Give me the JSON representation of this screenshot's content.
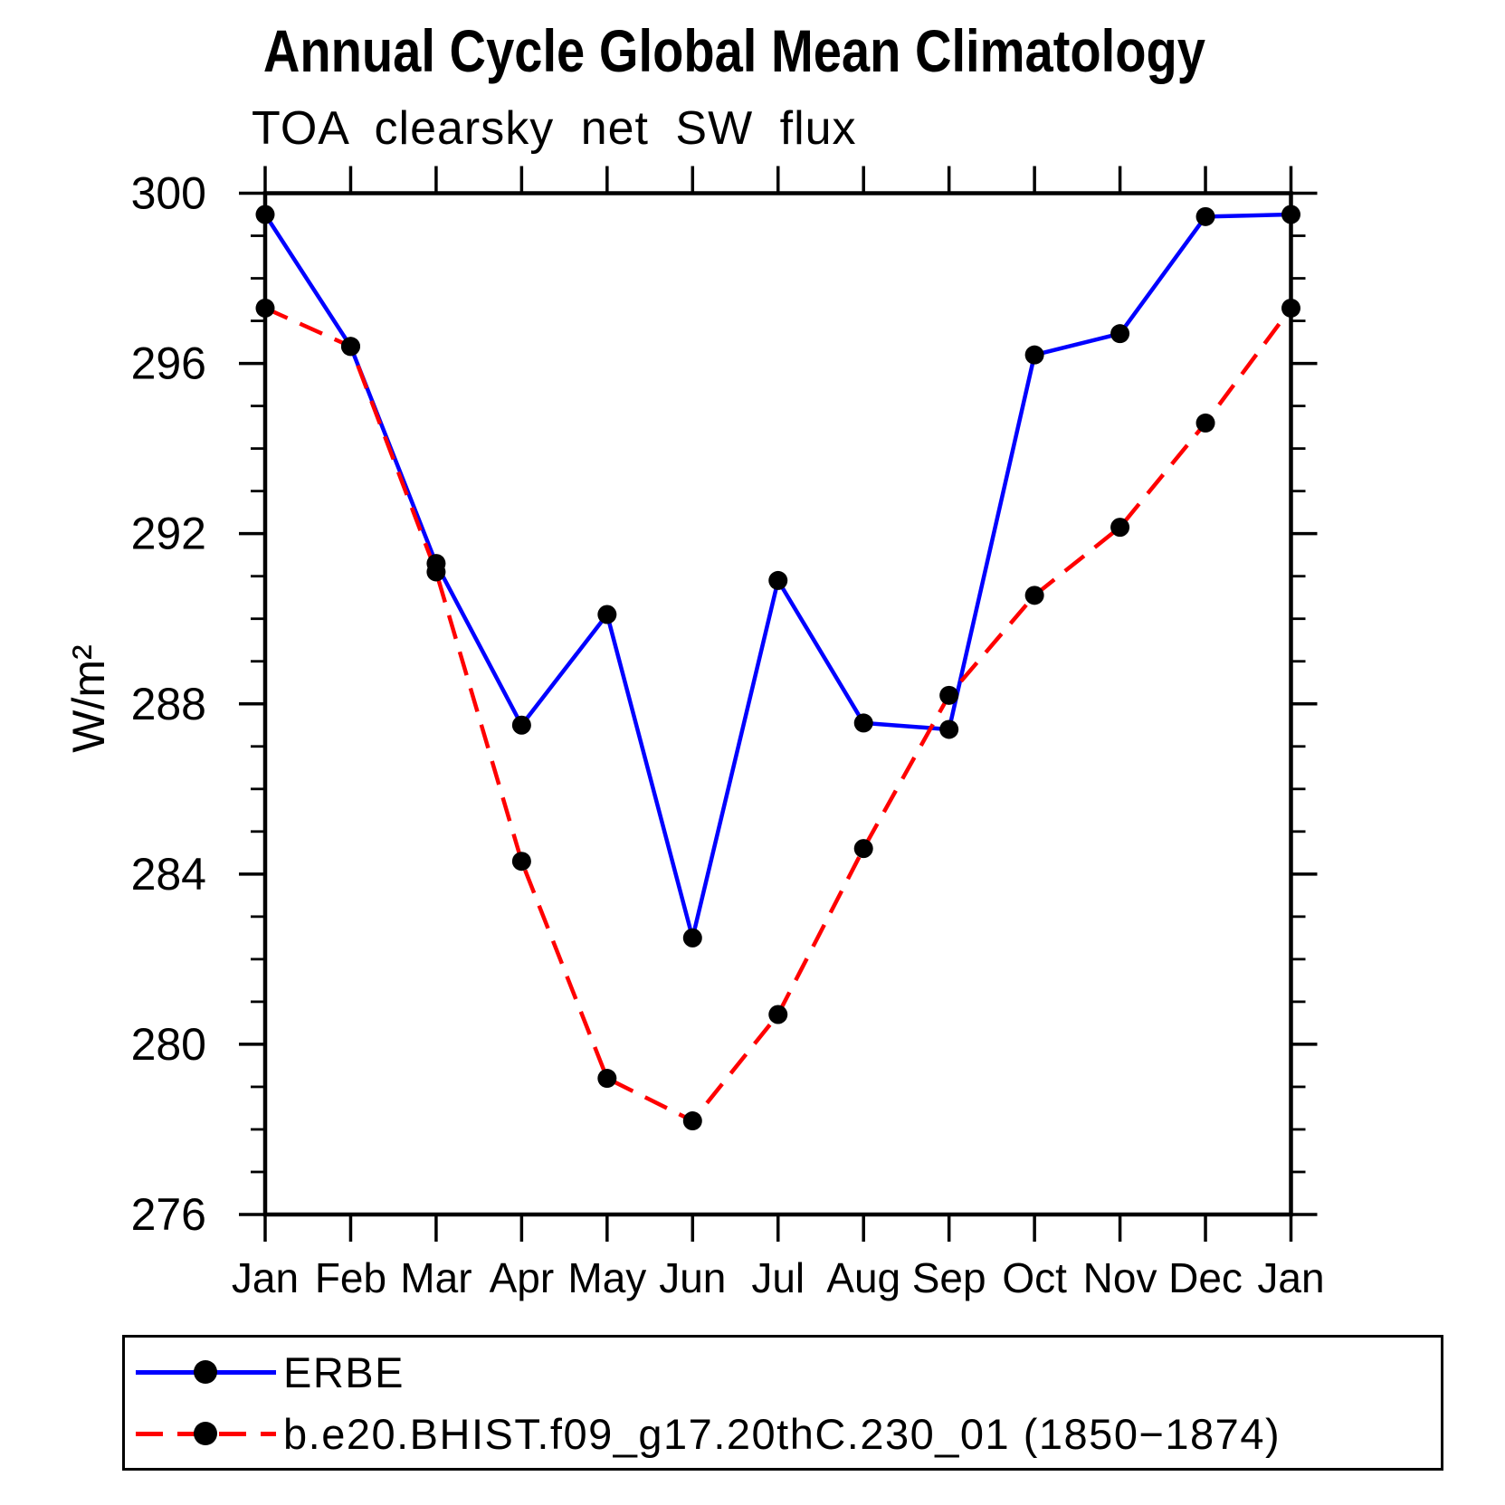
{
  "chart_data": {
    "type": "line",
    "title": "Annual Cycle Global Mean Climatology",
    "subtitle": "TOA clearsky net SW flux",
    "ylabel": "W/m²",
    "xlabel": "",
    "categories": [
      "Jan",
      "Feb",
      "Mar",
      "Apr",
      "May",
      "Jun",
      "Jul",
      "Aug",
      "Sep",
      "Oct",
      "Nov",
      "Dec",
      "Jan"
    ],
    "ylim": [
      276,
      300
    ],
    "yticks": [
      276,
      280,
      284,
      288,
      292,
      296,
      300
    ],
    "ytick_minor_step": 1,
    "grid": "off",
    "legend_position": "bottom",
    "marker_color": "#000000",
    "axis_color": "#000000",
    "series": [
      {
        "name": "ERBE",
        "color": "#0000ff",
        "style": "solid",
        "marker": "filled-circle",
        "values": [
          299.5,
          296.4,
          291.3,
          287.5,
          290.1,
          282.5,
          290.9,
          287.55,
          287.4,
          296.2,
          296.7,
          299.45,
          299.5
        ]
      },
      {
        "name": "b.e20.BHIST.f09_g17.20thC.230_01 (1850−1874)",
        "color": "#ff0000",
        "style": "dashed",
        "marker": "filled-circle",
        "values": [
          297.3,
          296.4,
          291.1,
          284.3,
          279.2,
          278.2,
          280.7,
          284.6,
          288.2,
          290.55,
          292.15,
          294.6,
          297.3
        ]
      }
    ]
  }
}
